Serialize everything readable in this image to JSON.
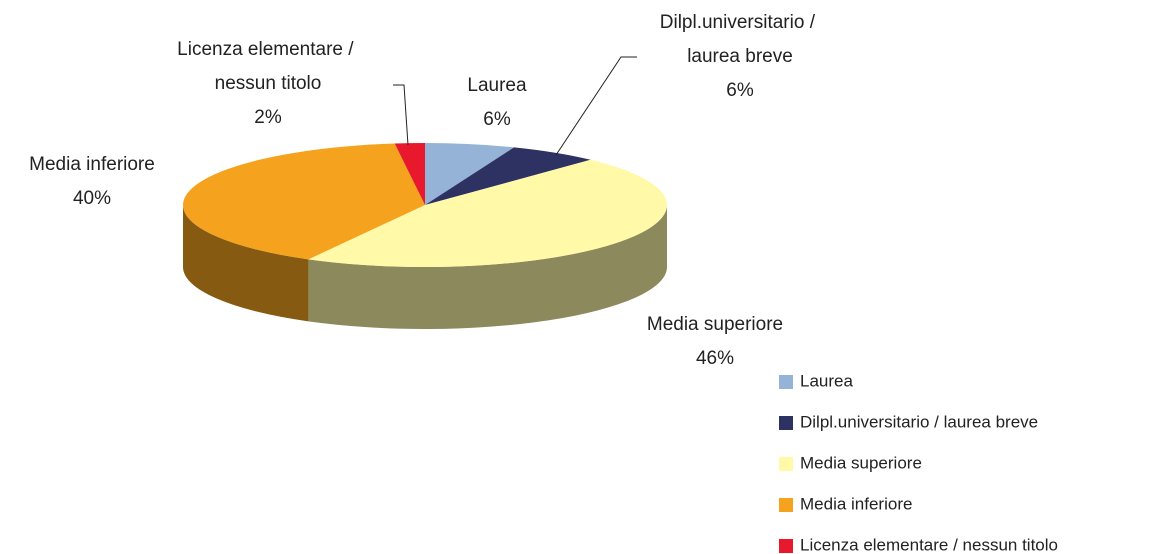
{
  "chart_data": {
    "type": "pie3d",
    "categories": [
      "Laurea",
      "Dilpl.universitario / laurea breve",
      "Media superiore",
      "Media inferiore",
      "Licenza elementare / nessun titolo"
    ],
    "values": [
      6,
      6,
      46,
      40,
      2
    ],
    "value_labels": [
      "6%",
      "6%",
      "46%",
      "40%",
      "2%"
    ],
    "colors": [
      "#95b3d7",
      "#2e3262",
      "#fff9a8",
      "#f5a31e",
      "#e8192c"
    ],
    "legend": "bottom-right"
  }
}
